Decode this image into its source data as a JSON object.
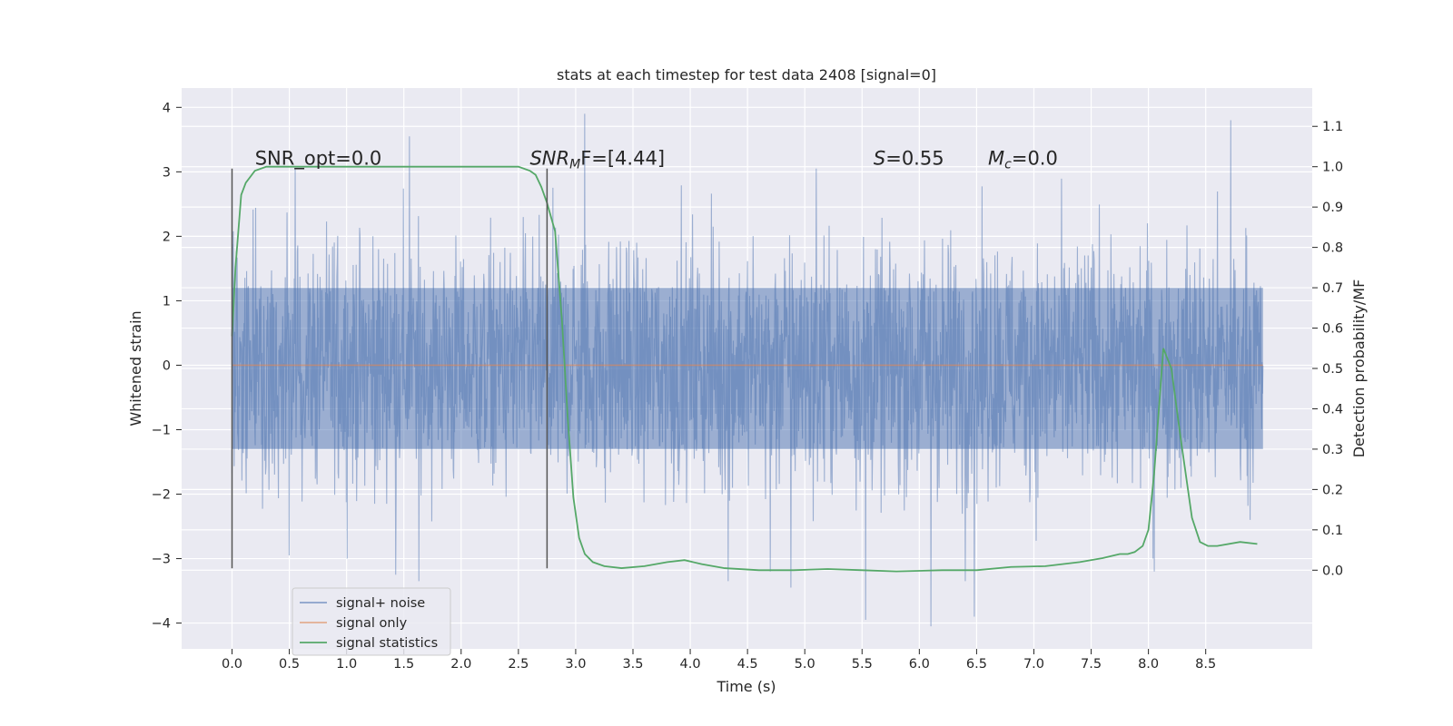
{
  "chart_data": {
    "type": "line",
    "title": "stats at each timestep for test data 2408 [signal=0]",
    "xlabel": "Time (s)",
    "ylabel": "Whitened strain",
    "y2label": "Detection probability/MF",
    "xlim": [
      -0.44,
      9.43
    ],
    "ylim": [
      -4.4,
      4.3
    ],
    "y2lim": [
      -0.195,
      1.195
    ],
    "xticks": [
      "0.0",
      "0.5",
      "1.0",
      "1.5",
      "2.0",
      "2.5",
      "3.0",
      "3.5",
      "4.0",
      "4.5",
      "5.0",
      "5.5",
      "6.0",
      "6.5",
      "7.0",
      "7.5",
      "8.0",
      "8.5"
    ],
    "yticks": [
      "4",
      "3",
      "2",
      "1",
      "0",
      "−1",
      "−2",
      "−3",
      "−4"
    ],
    "y2ticks": [
      "1.1",
      "1.0",
      "0.9",
      "0.8",
      "0.7",
      "0.6",
      "0.5",
      "0.4",
      "0.3",
      "0.2",
      "0.1",
      "0.0"
    ],
    "grid": true,
    "legend_position": "lower-left",
    "annotations": [
      {
        "id": "snr-opt",
        "pre": "SNR_opt=0.0",
        "ital": "",
        "sub": "",
        "post": "",
        "x": 0.2,
        "y2": 1.0
      },
      {
        "id": "snr-mf",
        "pre": "",
        "ital": "SNR",
        "sub": "M",
        "post": "F=[4.44]",
        "x": 2.6,
        "y2": 1.0
      },
      {
        "id": "s-value",
        "pre": "",
        "ital": "S",
        "sub": "",
        "post": "=0.55",
        "x": 5.6,
        "y2": 1.0
      },
      {
        "id": "mc-value",
        "pre": "",
        "ital": "M",
        "sub": "c",
        "post": "=0.0",
        "x": 6.6,
        "y2": 1.0
      }
    ],
    "vlines": [
      0.0,
      2.75
    ],
    "vline_range": [
      -3.15,
      3.05
    ],
    "series": [
      {
        "name": "signal+ noise",
        "color": "#4c72b0",
        "alpha": 0.5,
        "kind": "dense-noise",
        "x_range": [
          0.0,
          9.0
        ],
        "band": [
          -1.3,
          1.2
        ],
        "spikes": [
          {
            "x": 0.55,
            "y": 3.05
          },
          {
            "x": 1.55,
            "y": 3.55
          },
          {
            "x": 3.08,
            "y": 3.9
          },
          {
            "x": 8.72,
            "y": 3.8
          },
          {
            "x": 4.33,
            "y": 3.05
          },
          {
            "x": 5.1,
            "y": 3.05
          },
          {
            "x": 0.5,
            "y": -2.95
          },
          {
            "x": 1.43,
            "y": -3.25
          },
          {
            "x": 1.63,
            "y": -3.35
          },
          {
            "x": 4.33,
            "y": -3.35
          },
          {
            "x": 4.7,
            "y": -3.2
          },
          {
            "x": 4.88,
            "y": -3.45
          },
          {
            "x": 5.53,
            "y": -3.95
          },
          {
            "x": 6.1,
            "y": -4.05
          },
          {
            "x": 6.48,
            "y": -3.9
          },
          {
            "x": 8.05,
            "y": -3.2
          },
          {
            "x": 6.4,
            "y": -3.35
          }
        ]
      },
      {
        "name": "signal only",
        "color": "#dd8452",
        "alpha": 0.6,
        "x": [
          0.0,
          9.0
        ],
        "y": [
          0.0,
          0.0
        ]
      },
      {
        "name": "signal statistics",
        "color": "#55a868",
        "axis": "right",
        "x": [
          0.0,
          0.03,
          0.08,
          0.12,
          0.2,
          0.3,
          0.5,
          0.8,
          1.0,
          1.5,
          1.8,
          2.0,
          2.3,
          2.5,
          2.6,
          2.65,
          2.7,
          2.75,
          2.82,
          2.88,
          2.93,
          2.98,
          3.03,
          3.08,
          3.15,
          3.25,
          3.4,
          3.6,
          3.8,
          3.95,
          4.1,
          4.3,
          4.6,
          4.9,
          5.2,
          5.5,
          5.8,
          6.2,
          6.5,
          6.8,
          7.1,
          7.4,
          7.6,
          7.75,
          7.82,
          7.88,
          7.95,
          8.0,
          8.05,
          8.13,
          8.2,
          8.28,
          8.38,
          8.45,
          8.52,
          8.6,
          8.8,
          8.95
        ],
        "y": [
          0.58,
          0.75,
          0.93,
          0.96,
          0.99,
          1.0,
          1.0,
          1.0,
          1.0,
          1.0,
          1.0,
          1.0,
          1.0,
          1.0,
          0.99,
          0.98,
          0.95,
          0.91,
          0.84,
          0.62,
          0.38,
          0.18,
          0.08,
          0.04,
          0.02,
          0.01,
          0.005,
          0.01,
          0.02,
          0.025,
          0.015,
          0.005,
          0.0,
          0.0,
          0.003,
          0.0,
          -0.003,
          0.0,
          0.0,
          0.008,
          0.01,
          0.02,
          0.03,
          0.04,
          0.04,
          0.045,
          0.06,
          0.1,
          0.24,
          0.55,
          0.5,
          0.33,
          0.13,
          0.07,
          0.06,
          0.06,
          0.07,
          0.065
        ]
      }
    ]
  }
}
